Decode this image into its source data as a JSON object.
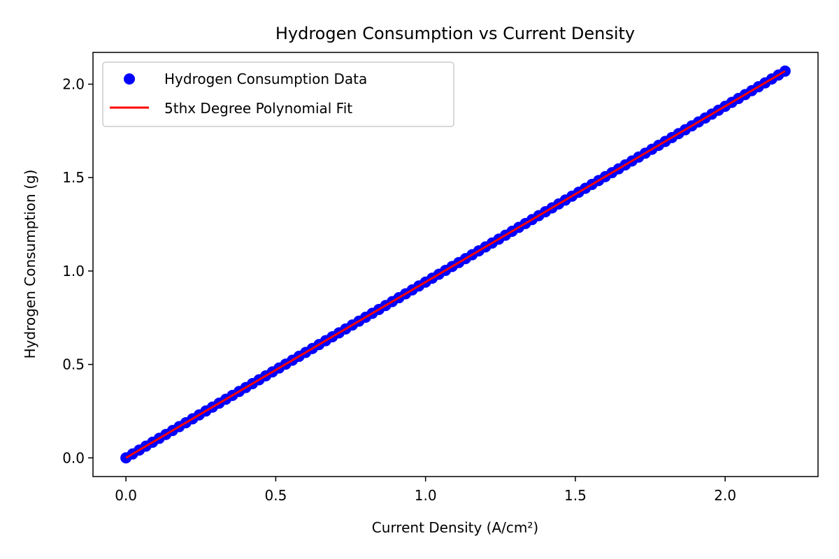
{
  "chart_data": {
    "type": "line",
    "title": "Hydrogen Consumption vs Current Density",
    "xlabel": "Current Density (A/cm²)",
    "ylabel": "Hydrogen Consumption (g)",
    "xlim": [
      -0.11,
      2.31
    ],
    "ylim": [
      -0.1,
      2.17
    ],
    "xticks": [
      0.0,
      0.5,
      1.0,
      1.5,
      2.0
    ],
    "xtick_labels": [
      "0.0",
      "0.5",
      "1.0",
      "1.5",
      "2.0"
    ],
    "yticks": [
      0.0,
      0.5,
      1.0,
      1.5,
      2.0
    ],
    "ytick_labels": [
      "0.0",
      "0.5",
      "1.0",
      "1.5",
      "2.0"
    ],
    "grid": false,
    "legend_position": "top-left",
    "series": [
      {
        "name": "Hydrogen Consumption Data",
        "kind": "scatter",
        "color": "#0000ff",
        "x_start": 0.0,
        "x_end": 2.2,
        "n_points": 100,
        "slope": 0.9408,
        "intercept": 0.0
      },
      {
        "name": "5thx Degree Polynomial Fit",
        "kind": "line",
        "color": "#ff0000",
        "x": [
          0.0,
          2.2
        ],
        "y": [
          0.0,
          2.07
        ]
      }
    ]
  }
}
